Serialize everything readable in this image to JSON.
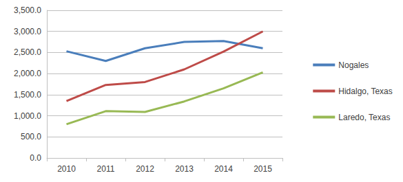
{
  "chart_data": {
    "type": "line",
    "categories": [
      "2010",
      "2011",
      "2012",
      "2013",
      "2014",
      "2015"
    ],
    "series": [
      {
        "name": "Nogales",
        "color": "#4a7ebb",
        "values": [
          2530,
          2300,
          2600,
          2750,
          2770,
          2600
        ]
      },
      {
        "name": "Hidalgo, Texas",
        "color": "#be4b48",
        "values": [
          1350,
          1730,
          1800,
          2100,
          2520,
          3000
        ]
      },
      {
        "name": "Laredo, Texas",
        "color": "#98b954",
        "values": [
          800,
          1110,
          1090,
          1340,
          1650,
          2030
        ]
      }
    ],
    "ylim": [
      0,
      3500
    ],
    "yticks": [
      {
        "value": 0,
        "label": "0.0"
      },
      {
        "value": 500,
        "label": "500.0"
      },
      {
        "value": 1000,
        "label": "1,000.0"
      },
      {
        "value": 1500,
        "label": "1,500.0"
      },
      {
        "value": 2000,
        "label": "2,000.0"
      },
      {
        "value": 2500,
        "label": "2,500.0"
      },
      {
        "value": 3000,
        "label": "3,000.0"
      },
      {
        "value": 3500,
        "label": "3,500.0"
      }
    ],
    "grid": true,
    "legend": "right"
  }
}
